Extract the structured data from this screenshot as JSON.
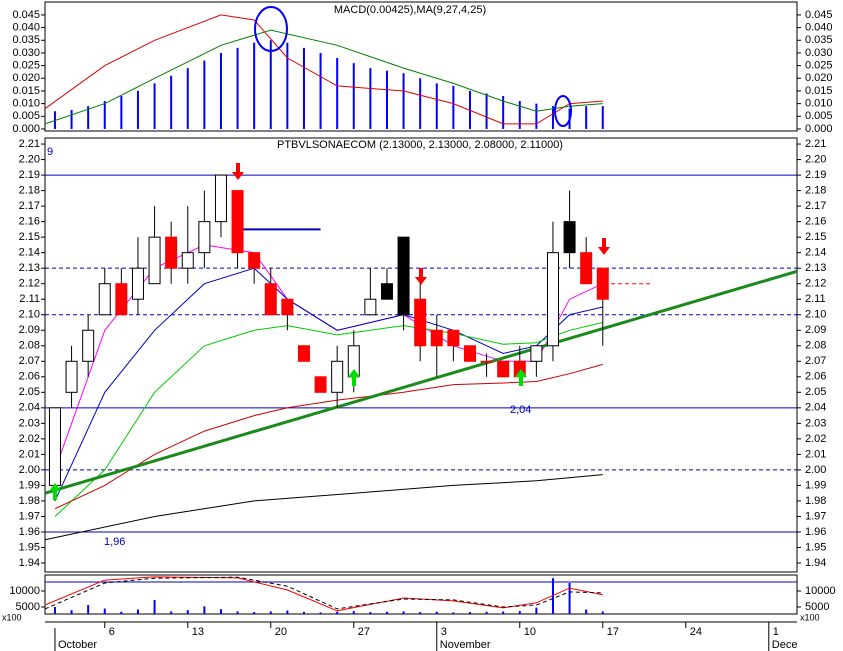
{
  "chart_data": [
    {
      "type": "bar",
      "title": "MACD(0.00425),MA(9,27,4,25)",
      "xlim": [
        -0.6,
        44.7
      ],
      "ylim": [
        -0.0008,
        0.0501
      ],
      "yticks": [
        {
          "value": 0,
          "label": "0.000"
        },
        {
          "value": 0.005,
          "label": "0.005"
        },
        {
          "value": 0.01,
          "label": "0.010"
        },
        {
          "value": 0.015,
          "label": "0.015"
        },
        {
          "value": 0.02,
          "label": "0.020"
        },
        {
          "value": 0.025,
          "label": "0.025"
        },
        {
          "value": 0.03,
          "label": "0.030"
        },
        {
          "value": 0.035,
          "label": "0.035"
        },
        {
          "value": 0.04,
          "label": "0.040"
        },
        {
          "value": 0.045,
          "label": "0.045"
        }
      ],
      "series": [
        {
          "type": "bar",
          "color": "#0000ff",
          "x": [
            0,
            1,
            2,
            3,
            4,
            5,
            6,
            7,
            8,
            9,
            10,
            11,
            12,
            13,
            14,
            15,
            16,
            17,
            18,
            19,
            20,
            21,
            22,
            23,
            24,
            25,
            26,
            27,
            28,
            29,
            30,
            31,
            32,
            33
          ],
          "values": [
            0.007,
            0.0075,
            0.009,
            0.011,
            0.013,
            0.015,
            0.018,
            0.021,
            0.024,
            0.027,
            0.03,
            0.032,
            0.034,
            0.035,
            0.034,
            0.032,
            0.03,
            0.028,
            0.026,
            0.024,
            0.023,
            0.022,
            0.02,
            0.018,
            0.017,
            0.015,
            0.014,
            0.013,
            0.011,
            0.01,
            0.009,
            0.008,
            0.009,
            0.009
          ]
        },
        {
          "type": "line",
          "color": "#e00000",
          "x": [
            -0.6,
            3,
            6,
            10,
            12,
            14,
            17,
            21,
            24,
            27,
            29,
            31,
            33
          ],
          "values": [
            0.008,
            0.025,
            0.035,
            0.045,
            0.043,
            0.028,
            0.017,
            0.015,
            0.01,
            0.002,
            0.002,
            0.01,
            0.011
          ]
        },
        {
          "type": "line",
          "color": "#008000",
          "x": [
            -0.6,
            3,
            6,
            10,
            13,
            17,
            21,
            24,
            27,
            29,
            31,
            33
          ],
          "values": [
            0.002,
            0.01,
            0.02,
            0.033,
            0.039,
            0.033,
            0.024,
            0.018,
            0.011,
            0.007,
            0.009,
            0.01
          ]
        }
      ]
    },
    {
      "type": "candlestick",
      "title": "PTBVLSONAECOM (2.13000, 2.13000, 2.08000, 2.11000)",
      "xlim": [
        -0.6,
        44.7
      ],
      "ylim": [
        1.9342,
        2.2139
      ],
      "yticks": [
        {
          "value": 2.21,
          "label": "2.21"
        },
        {
          "value": 2.2,
          "label": "2.20"
        },
        {
          "value": 2.19,
          "label": "2.19"
        },
        {
          "value": 2.18,
          "label": "2.18"
        },
        {
          "value": 2.17,
          "label": "2.17"
        },
        {
          "value": 2.16,
          "label": "2.16"
        },
        {
          "value": 2.15,
          "label": "2.15"
        },
        {
          "value": 2.14,
          "label": "2.14"
        },
        {
          "value": 2.13,
          "label": "2.13"
        },
        {
          "value": 2.12,
          "label": "2.12"
        },
        {
          "value": 2.11,
          "label": "2.11"
        },
        {
          "value": 2.1,
          "label": "2.10"
        },
        {
          "value": 2.09,
          "label": "2.09"
        },
        {
          "value": 2.08,
          "label": "2.08"
        },
        {
          "value": 2.07,
          "label": "2.07"
        },
        {
          "value": 2.06,
          "label": "2.06"
        },
        {
          "value": 2.05,
          "label": "2.05"
        },
        {
          "value": 2.04,
          "label": "2.04"
        },
        {
          "value": 2.03,
          "label": "2.03"
        },
        {
          "value": 2.02,
          "label": "2.02"
        },
        {
          "value": 2.01,
          "label": "2.01"
        },
        {
          "value": 2,
          "label": "2.00"
        },
        {
          "value": 1.99,
          "label": "1.99"
        },
        {
          "value": 1.98,
          "label": "1.98"
        },
        {
          "value": 1.97,
          "label": "1.97"
        },
        {
          "value": 1.96,
          "label": "1.96"
        },
        {
          "value": 1.95,
          "label": "1.95"
        },
        {
          "value": 1.94,
          "label": "1.94"
        }
      ],
      "hlines": [
        {
          "value": 2.19,
          "style": "solid",
          "color": "#0000c0"
        },
        {
          "value": 2.13,
          "style": "dashed",
          "color": "#0000c0"
        },
        {
          "value": 2.1,
          "style": "dashed",
          "color": "#0000c0"
        },
        {
          "value": 2.04,
          "style": "solid",
          "color": "#0000c0"
        },
        {
          "value": 2,
          "style": "dashed",
          "color": "#0000c0"
        },
        {
          "value": 1.96,
          "style": "solid",
          "color": "#0000c0"
        }
      ],
      "annotations": [
        "9",
        "2,04",
        "1,96"
      ],
      "series": [
        {
          "type": "line",
          "color": "#ff00ff",
          "x": [
            0,
            3,
            6,
            9,
            12,
            14,
            17,
            21,
            24,
            27,
            29,
            31,
            33
          ],
          "values": [
            2.0,
            2.09,
            2.13,
            2.145,
            2.14,
            2.11,
            2.09,
            2.1,
            2.08,
            2.07,
            2.07,
            2.11,
            2.12
          ]
        },
        {
          "type": "line",
          "color": "#0000c0",
          "x": [
            0,
            3,
            6,
            9,
            12,
            14,
            17,
            21,
            24,
            27,
            29,
            31,
            33
          ],
          "values": [
            1.98,
            2.05,
            2.09,
            2.12,
            2.13,
            2.11,
            2.09,
            2.1,
            2.09,
            2.075,
            2.08,
            2.1,
            2.105
          ]
        },
        {
          "type": "line",
          "color": "#00cc00",
          "x": [
            0,
            3,
            6,
            9,
            12,
            14,
            17,
            21,
            24,
            27,
            29,
            31,
            33
          ],
          "values": [
            1.97,
            2.0,
            2.05,
            2.08,
            2.09,
            2.093,
            2.087,
            2.093,
            2.088,
            2.081,
            2.082,
            2.09,
            2.095
          ]
        },
        {
          "type": "line",
          "color": "#cc0000",
          "x": [
            0,
            3,
            6,
            9,
            12,
            14,
            17,
            21,
            24,
            27,
            29,
            31,
            33
          ],
          "values": [
            1.975,
            1.99,
            2.01,
            2.025,
            2.035,
            2.04,
            2.045,
            2.05,
            2.055,
            2.056,
            2.057,
            2.062,
            2.068
          ]
        },
        {
          "type": "line",
          "color": "#000000",
          "x": [
            -0.6,
            6,
            12,
            18,
            24,
            29,
            33
          ],
          "values": [
            1.955,
            1.97,
            1.98,
            1.985,
            1.99,
            1.993,
            1.997
          ]
        },
        {
          "type": "line",
          "color": "#1a8a1a",
          "width": 3,
          "x": [
            -0.6,
            44.7
          ],
          "values": [
            1.985,
            2.128
          ]
        },
        {
          "type": "line",
          "color": "#0000c0",
          "width": 2,
          "x": [
            11,
            16
          ],
          "values": [
            2.155,
            2.155
          ]
        },
        {
          "type": "line",
          "color": "#ff0000",
          "dashed": true,
          "x": [
            33.5,
            36
          ],
          "values": [
            2.12,
            2.12
          ]
        },
        {
          "type": "candlestick",
          "x": [
            0,
            1,
            2,
            3,
            4,
            5,
            6,
            7,
            8,
            9,
            10,
            11,
            12,
            13,
            14,
            15,
            16,
            17,
            18,
            19,
            20,
            21,
            22,
            23,
            24,
            25,
            26,
            27,
            28,
            29,
            30,
            31,
            32,
            33
          ],
          "open": [
            1.99,
            2.05,
            2.07,
            2.1,
            2.12,
            2.11,
            2.12,
            2.15,
            2.13,
            2.14,
            2.16,
            2.18,
            2.14,
            2.12,
            2.11,
            2.08,
            2.06,
            2.05,
            2.06,
            2.1,
            2.11,
            2.1,
            2.11,
            2.09,
            2.09,
            2.08,
            2.07,
            2.07,
            2.07,
            2.07,
            2.08,
            2.16,
            2.14,
            2.13
          ],
          "high": [
            2.04,
            2.08,
            2.1,
            2.13,
            2.13,
            2.15,
            2.17,
            2.16,
            2.17,
            2.18,
            2.19,
            2.18,
            2.14,
            2.13,
            2.11,
            2.08,
            2.06,
            2.08,
            2.09,
            2.13,
            2.13,
            2.15,
            2.12,
            2.1,
            2.09,
            2.08,
            2.075,
            2.07,
            2.08,
            2.08,
            2.16,
            2.18,
            2.15,
            2.13
          ],
          "low": [
            1.98,
            2.04,
            2.06,
            2.1,
            2.1,
            2.1,
            2.12,
            2.12,
            2.12,
            2.13,
            2.15,
            2.13,
            2.12,
            2.1,
            2.09,
            2.07,
            2.05,
            2.04,
            2.05,
            2.1,
            2.11,
            2.09,
            2.07,
            2.06,
            2.07,
            2.07,
            2.06,
            2.06,
            2.06,
            2.06,
            2.07,
            2.13,
            2.12,
            2.08
          ],
          "close": [
            2.04,
            2.07,
            2.09,
            2.12,
            2.1,
            2.13,
            2.15,
            2.13,
            2.14,
            2.16,
            2.19,
            2.14,
            2.13,
            2.1,
            2.1,
            2.07,
            2.05,
            2.07,
            2.08,
            2.11,
            2.12,
            2.15,
            2.08,
            2.08,
            2.08,
            2.07,
            2.07,
            2.06,
            2.06,
            2.08,
            2.14,
            2.14,
            2.12,
            2.11
          ],
          "colors": [
            "#ffffff",
            "#ffffff",
            "#ffffff",
            "#ffffff",
            "#ff0000",
            "#ffffff",
            "#ffffff",
            "#ff0000",
            "#ffffff",
            "#ffffff",
            "#ffffff",
            "#ff0000",
            "#ff0000",
            "#ff0000",
            "#ff0000",
            "#ff0000",
            "#ff0000",
            "#ffffff",
            "#ffffff",
            "#ffffff",
            "#000000",
            "#000000",
            "#ff0000",
            "#ff0000",
            "#ff0000",
            "#ff0000",
            "#ff0000",
            "#ff0000",
            "#ff0000",
            "#ffffff",
            "#ffffff",
            "#000000",
            "#ff0000",
            "#ff0000"
          ]
        }
      ]
    },
    {
      "type": "bar",
      "unit_label": "x100",
      "xlim": [
        -0.6,
        44.7
      ],
      "ylim": [
        2800,
        15000
      ],
      "yticks": [
        5000,
        10000
      ],
      "hlines": [
        {
          "value": 12800,
          "style": "solid",
          "color": "#0000c0"
        }
      ],
      "xticks": [
        {
          "value": 3,
          "label": "6"
        },
        {
          "value": 8,
          "label": "13"
        },
        {
          "value": 13,
          "label": "20"
        },
        {
          "value": 18,
          "label": "27"
        },
        {
          "value": 23,
          "label": "3"
        },
        {
          "value": 28,
          "label": "10"
        },
        {
          "value": 33,
          "label": "17"
        },
        {
          "value": 38,
          "label": "24"
        },
        {
          "value": 43,
          "label": "1"
        }
      ],
      "months": [
        {
          "value": 0,
          "label": "October"
        },
        {
          "value": 23,
          "label": "November"
        },
        {
          "value": 43,
          "label": "Dece"
        }
      ],
      "series": [
        {
          "type": "bar",
          "color": "#0000ff",
          "x": [
            0,
            1,
            2,
            3,
            4,
            5,
            6,
            7,
            8,
            9,
            10,
            11,
            12,
            13,
            14,
            15,
            16,
            17,
            18,
            19,
            20,
            21,
            22,
            23,
            24,
            25,
            26,
            27,
            28,
            29,
            30,
            31,
            32,
            33
          ],
          "values": [
            5000,
            4000,
            5600,
            4500,
            3500,
            4200,
            7200,
            3600,
            4000,
            5200,
            4300,
            3600,
            3400,
            3600,
            3900,
            3500,
            3300,
            3500,
            3700,
            3400,
            3500,
            3600,
            3400,
            3500,
            3300,
            3400,
            3500,
            3600,
            3700,
            4800,
            14000,
            12500,
            4200,
            3600
          ]
        },
        {
          "type": "line",
          "color": "#ff0000",
          "x": [
            -0.6,
            3,
            6,
            11,
            14,
            17,
            21,
            24,
            27,
            29,
            31,
            33
          ],
          "values": [
            5600,
            13400,
            14400,
            14100,
            10300,
            3800,
            7800,
            6900,
            4700,
            6300,
            10900,
            8800
          ]
        },
        {
          "type": "line",
          "color": "#000000",
          "dashed": true,
          "x": [
            -0.6,
            3,
            6,
            11,
            14,
            17,
            21,
            24,
            27,
            29,
            31,
            33
          ],
          "values": [
            4400,
            12500,
            14000,
            14300,
            11500,
            4400,
            7500,
            7200,
            5000,
            5600,
            9700,
            9400
          ]
        }
      ]
    }
  ]
}
